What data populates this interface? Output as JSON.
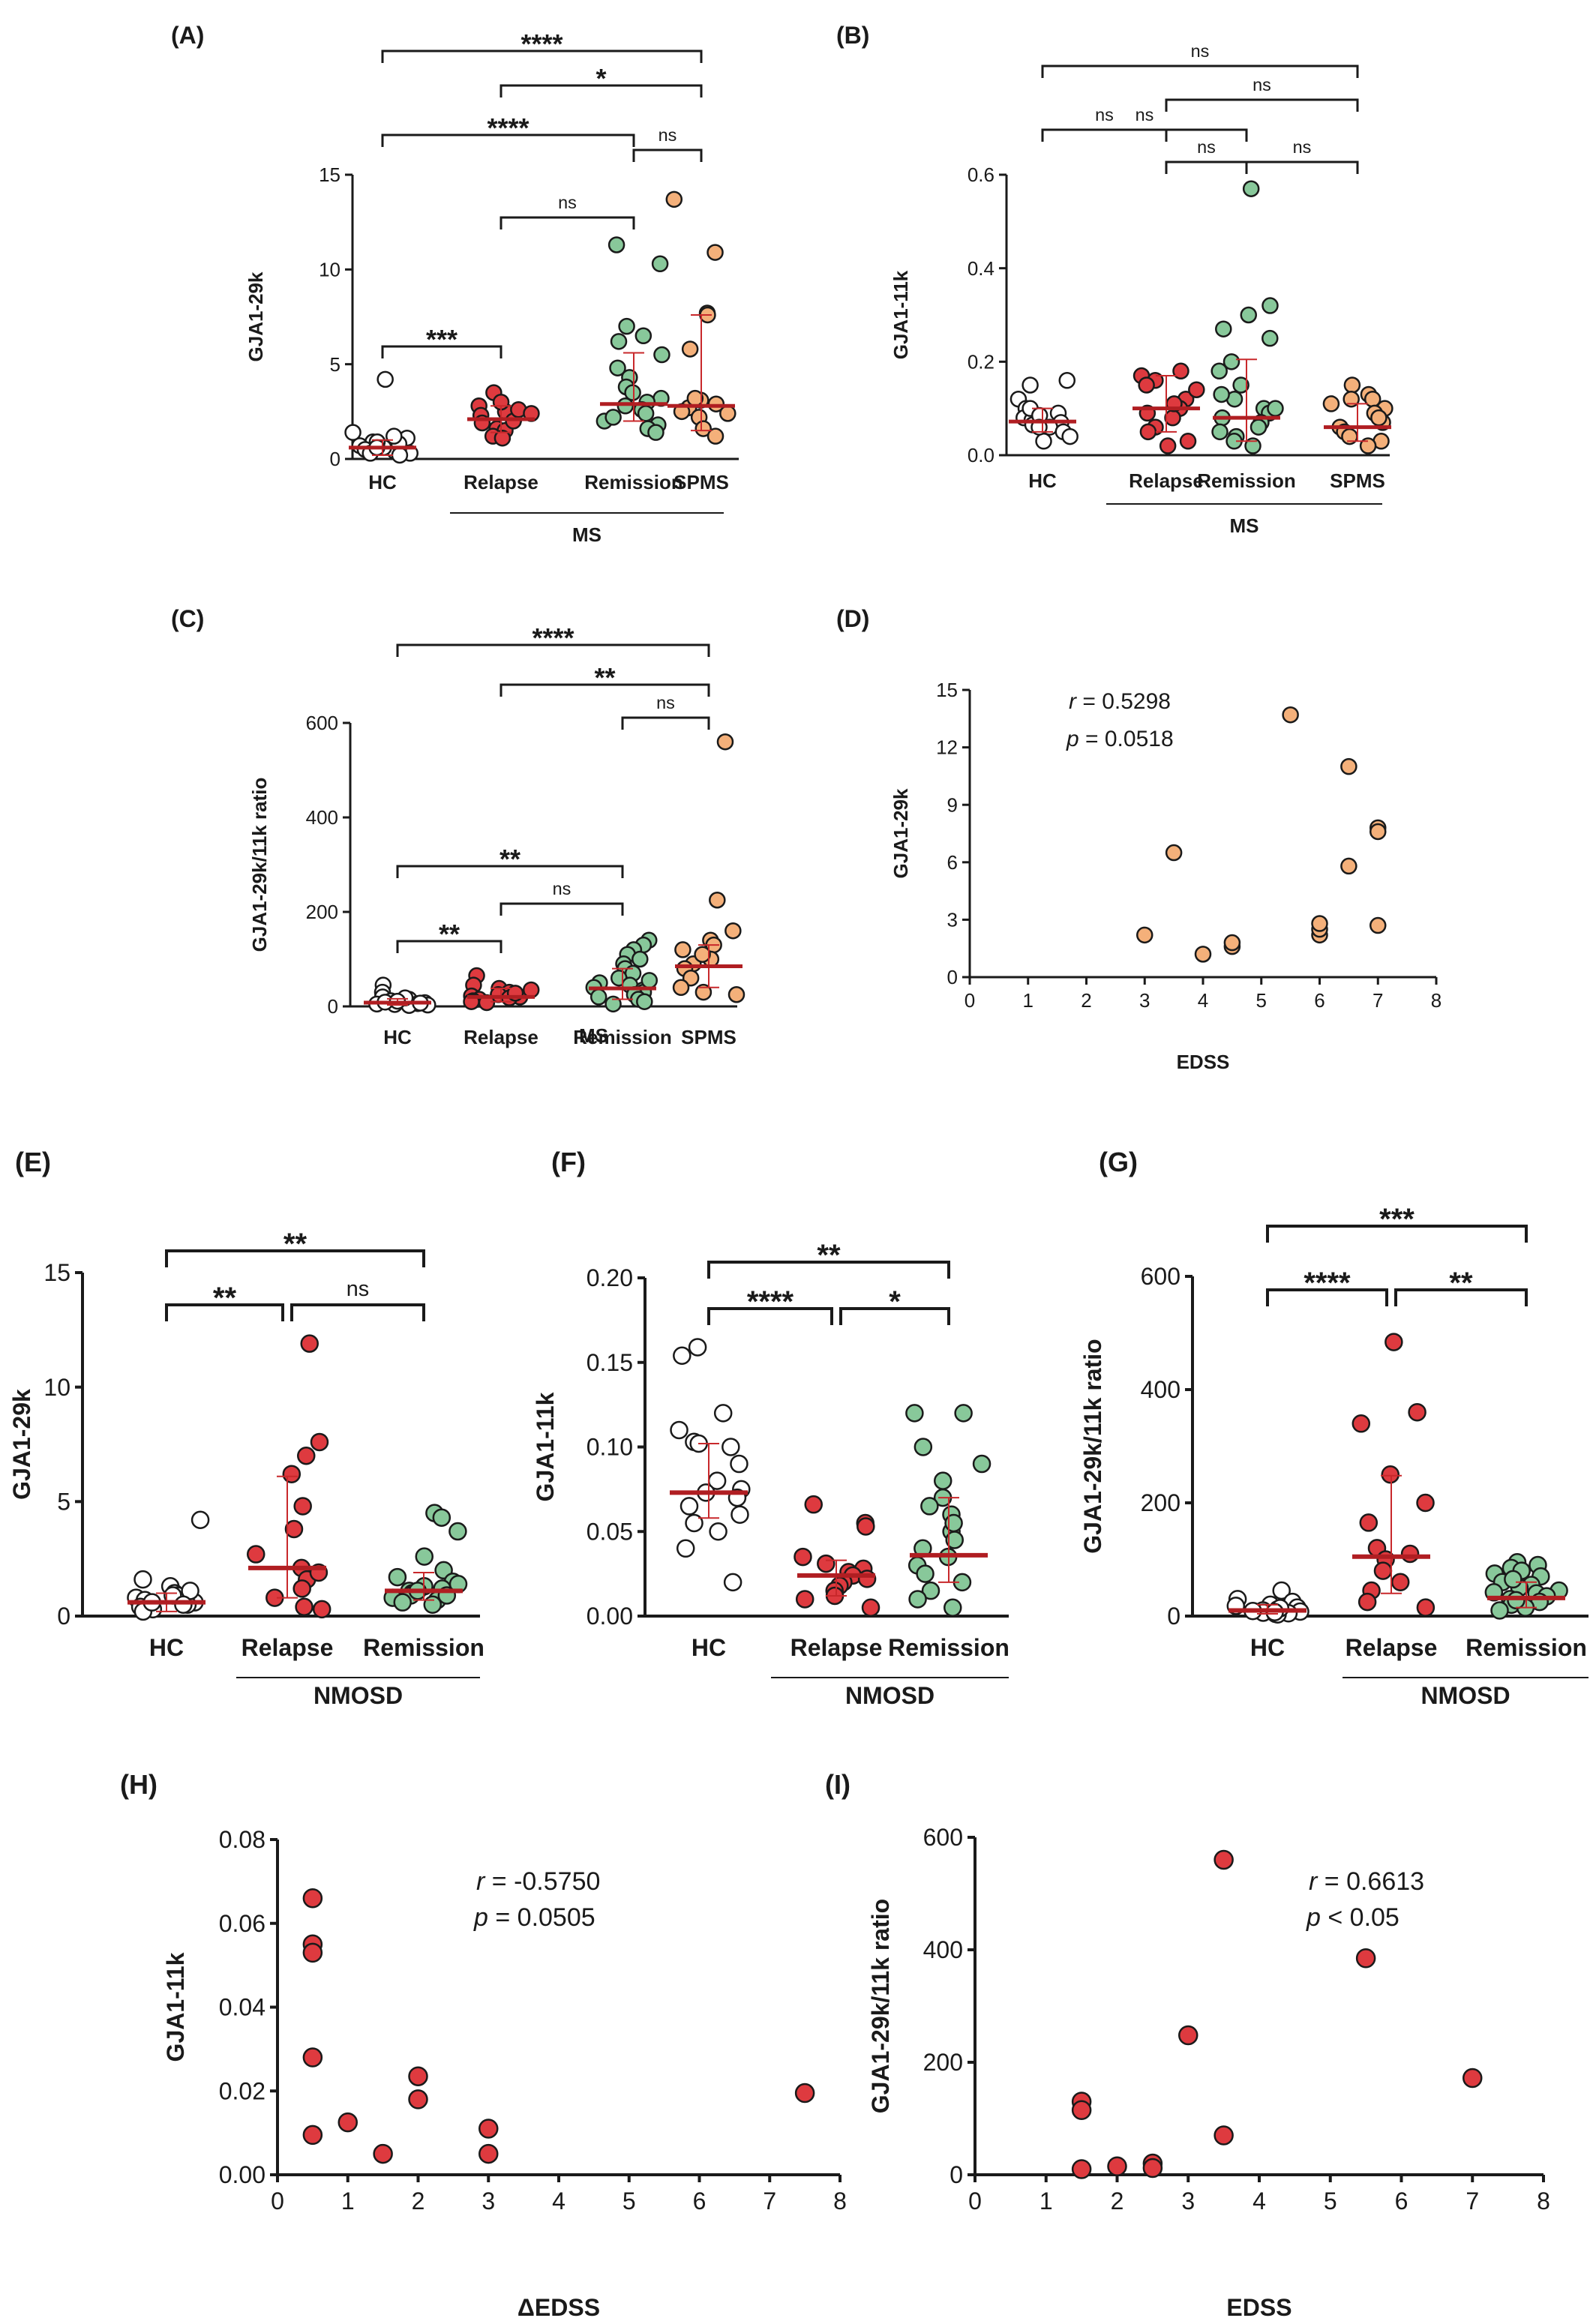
{
  "colors": {
    "HC": "#ffffff",
    "Relapse": "#de3a3f",
    "Remission": "#88c89a",
    "SPMS": "#f4b07a",
    "median_line": "#b01e22",
    "error_bar": "#c8282b",
    "axis": "#1a1a1a"
  },
  "chart_data": [
    {
      "id": "A",
      "panel_label": "(A)",
      "type": "scatter-dot",
      "ylabel": "GJA1-29k",
      "yticks": [
        0,
        5,
        10,
        15
      ],
      "ylim": [
        0,
        15
      ],
      "ytick_labels": [
        "0",
        "5",
        "10",
        "15"
      ],
      "categories": [
        "HC",
        "Relapse",
        "Remission",
        "SPMS"
      ],
      "group_label": "MS",
      "series": [
        {
          "name": "HC",
          "median": 0.6,
          "err": [
            0.2,
            1.0
          ],
          "values": [
            4.2,
            0.9,
            0.3,
            0.5,
            0.7,
            1.1,
            0.4,
            0.8,
            0.6,
            0.2,
            1.2,
            0.5,
            0.9,
            0.3,
            0.6,
            1.4
          ]
        },
        {
          "name": "Relapse",
          "median": 2.1,
          "err": [
            1.4,
            2.8
          ],
          "values": [
            3.5,
            2.8,
            2.3,
            2.1,
            1.9,
            1.6,
            1.5,
            2.5,
            3.0,
            1.2,
            2.0,
            2.6,
            1.1,
            2.4
          ]
        },
        {
          "name": "Remission",
          "median": 2.9,
          "err": [
            2.0,
            5.6
          ],
          "values": [
            11.3,
            10.3,
            7.0,
            6.5,
            6.2,
            5.5,
            4.3,
            3.8,
            3.5,
            3.2,
            3.0,
            2.8,
            2.6,
            2.4,
            2.0,
            1.8,
            1.6,
            1.4,
            2.2,
            4.8
          ]
        },
        {
          "name": "SPMS",
          "median": 2.8,
          "err": [
            1.5,
            7.6
          ],
          "values": [
            13.7,
            10.9,
            7.7,
            7.6,
            5.8,
            3.1,
            2.7,
            2.5,
            2.2,
            1.6,
            1.2,
            2.4,
            2.9,
            3.2
          ]
        }
      ],
      "comparisons": [
        {
          "a": 0,
          "b": 3,
          "label": "****"
        },
        {
          "a": 1,
          "b": 3,
          "label": "*"
        },
        {
          "a": 0,
          "b": 2,
          "label": "****"
        },
        {
          "a": 2,
          "b": 3,
          "label": "ns"
        },
        {
          "a": 1,
          "b": 2,
          "label": "ns"
        },
        {
          "a": 0,
          "b": 1,
          "label": "***"
        }
      ]
    },
    {
      "id": "B",
      "panel_label": "(B)",
      "type": "scatter-dot",
      "ylabel": "GJA1-11k",
      "yticks": [
        0,
        0.2,
        0.4,
        0.6
      ],
      "ylim": [
        0,
        0.6
      ],
      "ytick_labels": [
        "0.0",
        "0.2",
        "0.4",
        "0.6"
      ],
      "categories": [
        "HC",
        "Relapse",
        "Remission",
        "SPMS"
      ],
      "group_label": "MS",
      "series": [
        {
          "name": "HC",
          "median": 0.072,
          "err": [
            0.05,
            0.1
          ],
          "values": [
            0.16,
            0.15,
            0.12,
            0.1,
            0.09,
            0.08,
            0.075,
            0.07,
            0.065,
            0.06,
            0.05,
            0.04,
            0.03,
            0.1,
            0.085,
            0.06
          ]
        },
        {
          "name": "Relapse",
          "median": 0.1,
          "err": [
            0.05,
            0.17
          ],
          "values": [
            0.18,
            0.17,
            0.16,
            0.15,
            0.12,
            0.1,
            0.09,
            0.08,
            0.06,
            0.05,
            0.03,
            0.02,
            0.11,
            0.14
          ]
        },
        {
          "name": "Remission",
          "median": 0.08,
          "err": [
            0.03,
            0.205
          ],
          "values": [
            0.57,
            0.32,
            0.3,
            0.27,
            0.25,
            0.2,
            0.18,
            0.15,
            0.12,
            0.1,
            0.09,
            0.08,
            0.07,
            0.06,
            0.05,
            0.04,
            0.03,
            0.02,
            0.1,
            0.13
          ]
        },
        {
          "name": "SPMS",
          "median": 0.06,
          "err": [
            0.03,
            0.11
          ],
          "values": [
            0.15,
            0.13,
            0.12,
            0.11,
            0.1,
            0.09,
            0.07,
            0.06,
            0.05,
            0.04,
            0.03,
            0.02,
            0.08,
            0.12
          ]
        }
      ],
      "comparisons": [
        {
          "a": 0,
          "b": 3,
          "label": "ns"
        },
        {
          "a": 1,
          "b": 3,
          "label": "ns"
        },
        {
          "a": 0,
          "b": 2,
          "label": "ns"
        },
        {
          "a": 2,
          "b": 3,
          "label": "ns"
        },
        {
          "a": 1,
          "b": 2,
          "label": "ns"
        },
        {
          "a": 0,
          "b": 1,
          "label": "ns"
        }
      ]
    },
    {
      "id": "C",
      "panel_label": "(C)",
      "type": "scatter-dot",
      "ylabel": "GJA1-29k/11k ratio",
      "yticks": [
        0,
        200,
        400,
        600
      ],
      "ylim": [
        0,
        600
      ],
      "ytick_labels": [
        "0",
        "200",
        "400",
        "600"
      ],
      "categories": [
        "HC",
        "Relapse",
        "Remission",
        "SPMS"
      ],
      "group_label": "MS",
      "series": [
        {
          "name": "HC",
          "median": 8,
          "err": [
            3,
            16
          ],
          "values": [
            45,
            30,
            20,
            15,
            12,
            10,
            8,
            6,
            5,
            4,
            3,
            2,
            18,
            9,
            11,
            7
          ]
        },
        {
          "name": "Relapse",
          "median": 20,
          "err": [
            10,
            38
          ],
          "values": [
            65,
            45,
            38,
            30,
            25,
            22,
            20,
            18,
            15,
            12,
            10,
            8,
            28,
            35
          ]
        },
        {
          "name": "Remission",
          "median": 38,
          "err": [
            15,
            80
          ],
          "values": [
            140,
            130,
            120,
            110,
            90,
            80,
            70,
            60,
            50,
            45,
            40,
            35,
            30,
            25,
            20,
            15,
            10,
            5,
            100,
            55
          ]
        },
        {
          "name": "SPMS",
          "median": 85,
          "err": [
            40,
            130
          ],
          "values": [
            560,
            225,
            160,
            140,
            130,
            120,
            100,
            90,
            80,
            60,
            40,
            30,
            25,
            110
          ]
        }
      ],
      "comparisons": [
        {
          "a": 0,
          "b": 3,
          "label": "****"
        },
        {
          "a": 1,
          "b": 3,
          "label": "**"
        },
        {
          "a": 2,
          "b": 3,
          "label": "ns"
        },
        {
          "a": 0,
          "b": 2,
          "label": "**"
        },
        {
          "a": 1,
          "b": 2,
          "label": "ns"
        },
        {
          "a": 0,
          "b": 1,
          "label": "**"
        }
      ]
    },
    {
      "id": "D",
      "panel_label": "(D)",
      "type": "scatter",
      "xlabel": "EDSS",
      "ylabel": "GJA1-29k",
      "xticks": [
        0,
        1,
        2,
        3,
        4,
        5,
        6,
        7,
        8
      ],
      "xlim": [
        0,
        8
      ],
      "yticks": [
        0,
        3,
        6,
        9,
        12,
        15
      ],
      "ylim": [
        0,
        15
      ],
      "point_color": "#f4b07a",
      "r_label": "r",
      "r_value": " = 0.5298",
      "p_label": "p",
      "p_value": " =  0.0518",
      "points": [
        [
          3,
          2.2
        ],
        [
          3.5,
          6.5
        ],
        [
          4,
          1.2
        ],
        [
          4.5,
          1.6
        ],
        [
          4.5,
          1.8
        ],
        [
          5.5,
          13.7
        ],
        [
          6,
          2.2
        ],
        [
          6,
          2.5
        ],
        [
          6,
          2.8
        ],
        [
          6.5,
          11.0
        ],
        [
          6.5,
          5.8
        ],
        [
          7,
          7.8
        ],
        [
          7,
          7.6
        ],
        [
          7,
          2.7
        ]
      ]
    },
    {
      "id": "E",
      "panel_label": "(E)",
      "type": "scatter-dot",
      "ylabel": "GJA1-29k",
      "yticks": [
        0,
        5,
        10,
        15
      ],
      "ylim": [
        0,
        15
      ],
      "ytick_labels": [
        "0",
        "5",
        "10",
        "15"
      ],
      "categories": [
        "HC",
        "Relapse",
        "Remission"
      ],
      "group_label": "NMOSD",
      "series": [
        {
          "name": "HC",
          "median": 0.6,
          "err": [
            0.2,
            1.0
          ],
          "values": [
            4.2,
            1.6,
            1.3,
            1.0,
            0.9,
            0.8,
            0.7,
            0.6,
            0.5,
            0.4,
            0.3,
            0.2,
            1.1,
            0.6,
            0.9,
            0.5
          ]
        },
        {
          "name": "Relapse",
          "median": 2.1,
          "err": [
            0.8,
            6.1
          ],
          "values": [
            11.9,
            7.6,
            7.0,
            6.2,
            4.8,
            3.8,
            2.7,
            2.1,
            1.6,
            1.2,
            0.8,
            0.4,
            1.9,
            0.3
          ]
        },
        {
          "name": "Remission",
          "median": 1.1,
          "err": [
            0.7,
            1.9
          ],
          "values": [
            4.5,
            4.3,
            3.7,
            2.6,
            2.0,
            1.7,
            1.5,
            1.3,
            1.2,
            1.1,
            1.0,
            0.9,
            0.8,
            0.7,
            0.6,
            0.5,
            1.4,
            0.9,
            1.1
          ]
        }
      ],
      "comparisons": [
        {
          "a": 0,
          "b": 2,
          "label": "**"
        },
        {
          "a": 0,
          "b": 1,
          "label": "**"
        },
        {
          "a": 1,
          "b": 2,
          "label": "ns"
        }
      ]
    },
    {
      "id": "F",
      "panel_label": "(F)",
      "type": "scatter-dot",
      "ylabel": "GJA1-11k",
      "yticks": [
        0,
        0.05,
        0.1,
        0.15,
        0.2
      ],
      "ylim": [
        0,
        0.2
      ],
      "ytick_labels": [
        "0.00",
        "0.05",
        "0.10",
        "0.15",
        "0.20"
      ],
      "categories": [
        "HC",
        "Relapse",
        "Remission"
      ],
      "group_label": "NMOSD",
      "series": [
        {
          "name": "HC",
          "median": 0.073,
          "err": [
            0.058,
            0.102
          ],
          "values": [
            0.159,
            0.154,
            0.12,
            0.11,
            0.103,
            0.102,
            0.1,
            0.09,
            0.08,
            0.075,
            0.073,
            0.07,
            0.06,
            0.055,
            0.05,
            0.04,
            0.02,
            0.065
          ]
        },
        {
          "name": "Relapse",
          "median": 0.024,
          "err": [
            0.012,
            0.033
          ],
          "values": [
            0.066,
            0.055,
            0.053,
            0.035,
            0.031,
            0.028,
            0.026,
            0.024,
            0.02,
            0.018,
            0.015,
            0.012,
            0.01,
            0.005,
            0.022
          ]
        },
        {
          "name": "Remission",
          "median": 0.036,
          "err": [
            0.02,
            0.07
          ],
          "values": [
            0.12,
            0.12,
            0.1,
            0.09,
            0.08,
            0.07,
            0.06,
            0.05,
            0.045,
            0.04,
            0.035,
            0.03,
            0.025,
            0.02,
            0.015,
            0.01,
            0.005,
            0.055,
            0.065
          ]
        }
      ],
      "comparisons": [
        {
          "a": 0,
          "b": 2,
          "label": "**"
        },
        {
          "a": 0,
          "b": 1,
          "label": "****"
        },
        {
          "a": 1,
          "b": 2,
          "label": "*"
        }
      ]
    },
    {
      "id": "G",
      "panel_label": "(G)",
      "type": "scatter-dot",
      "ylabel": "GJA1-29k/11k ratio",
      "yticks": [
        0,
        200,
        400,
        600
      ],
      "ylim": [
        0,
        600
      ],
      "ytick_labels": [
        "0",
        "200",
        "400",
        "600"
      ],
      "categories": [
        "HC",
        "Relapse",
        "Remission"
      ],
      "group_label": "NMOSD",
      "series": [
        {
          "name": "HC",
          "median": 10,
          "err": [
            4,
            20
          ],
          "values": [
            45,
            30,
            25,
            20,
            15,
            12,
            10,
            8,
            6,
            5,
            4,
            3,
            18,
            9,
            14,
            7
          ]
        },
        {
          "name": "Relapse",
          "median": 105,
          "err": [
            40,
            248
          ],
          "values": [
            484,
            360,
            340,
            250,
            200,
            165,
            120,
            110,
            100,
            80,
            60,
            45,
            25,
            15
          ]
        },
        {
          "name": "Remission",
          "median": 32,
          "err": [
            15,
            60
          ],
          "values": [
            95,
            90,
            85,
            80,
            75,
            70,
            60,
            55,
            50,
            45,
            40,
            35,
            30,
            25,
            20,
            15,
            10,
            65,
            42,
            28
          ]
        }
      ],
      "comparisons": [
        {
          "a": 0,
          "b": 2,
          "label": "***"
        },
        {
          "a": 0,
          "b": 1,
          "label": "****"
        },
        {
          "a": 1,
          "b": 2,
          "label": "**"
        }
      ]
    },
    {
      "id": "H",
      "panel_label": "(H)",
      "type": "scatter",
      "xlabel": "ΔEDSS",
      "ylabel": "GJA1-11k",
      "xticks": [
        0,
        1,
        2,
        3,
        4,
        5,
        6,
        7,
        8
      ],
      "xlim": [
        0,
        8
      ],
      "yticks": [
        0,
        0.02,
        0.04,
        0.06,
        0.08
      ],
      "ylim": [
        0,
        0.08
      ],
      "ytick_labels": [
        "0.00",
        "0.02",
        "0.04",
        "0.06",
        "0.08"
      ],
      "point_color": "#de3a3f",
      "r_label": "r",
      "r_value": " = -0.5750",
      "p_label": "p",
      "p_value": " =  0.0505",
      "points": [
        [
          0.5,
          0.066
        ],
        [
          0.5,
          0.055
        ],
        [
          0.5,
          0.053
        ],
        [
          0.5,
          0.028
        ],
        [
          0.5,
          0.0095
        ],
        [
          1,
          0.0125
        ],
        [
          1.5,
          0.005
        ],
        [
          2,
          0.0235
        ],
        [
          2,
          0.018
        ],
        [
          3,
          0.011
        ],
        [
          3,
          0.005
        ],
        [
          7.5,
          0.0195
        ]
      ]
    },
    {
      "id": "I",
      "panel_label": "(I)",
      "type": "scatter",
      "xlabel": "EDSS",
      "ylabel": "GJA1-29k/11k ratio",
      "xticks": [
        0,
        1,
        2,
        3,
        4,
        5,
        6,
        7,
        8
      ],
      "xlim": [
        0,
        8
      ],
      "yticks": [
        0,
        200,
        400,
        600
      ],
      "ylim": [
        0,
        600
      ],
      "point_color": "#de3a3f",
      "r_label": "r",
      "r_value": " = 0.6613",
      "p_label": "p",
      "p_value": " <  0.05",
      "points": [
        [
          1.5,
          130
        ],
        [
          1.5,
          115
        ],
        [
          1.5,
          10
        ],
        [
          2,
          15
        ],
        [
          2.5,
          20
        ],
        [
          2.5,
          12
        ],
        [
          3,
          248
        ],
        [
          3.5,
          560
        ],
        [
          3.5,
          70
        ],
        [
          5.5,
          385
        ],
        [
          7,
          172
        ]
      ]
    }
  ]
}
